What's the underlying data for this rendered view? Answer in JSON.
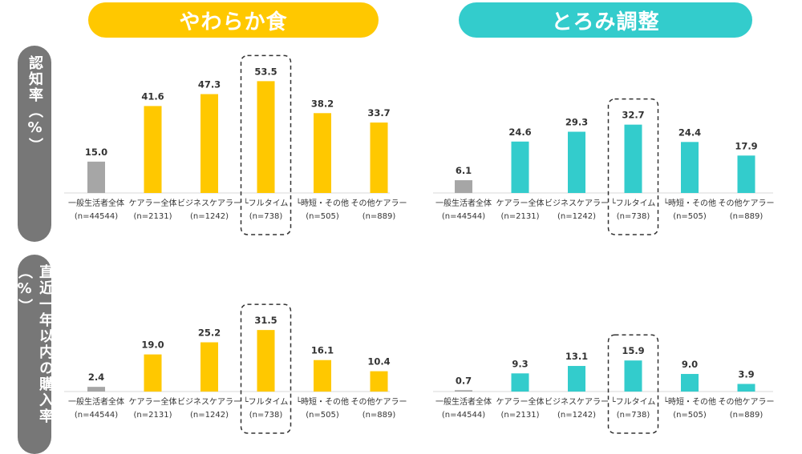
{
  "headers": {
    "left": "やわらか食",
    "right": "とろみ調整"
  },
  "row_labels": {
    "top": "認知率（%）",
    "bottom": "直近一年以内の購入率（%）"
  },
  "colors": {
    "yellow": "#FFC800",
    "teal": "#33CCCC",
    "gray": "#A6A6A6",
    "axis": "#D9D9D9",
    "highlight_border": "#333333"
  },
  "categories": [
    {
      "name": "一般生活者全体",
      "n": "(n=44544)"
    },
    {
      "name": "ケアラー全体",
      "n": "(n=2131)"
    },
    {
      "name": "ビジネスケアラー",
      "n": "(n=1242)"
    },
    {
      "name": "└フルタイム",
      "n": "(n=738)"
    },
    {
      "name": "└時短・その他",
      "n": "(n=505)"
    },
    {
      "name": "その他ケアラー",
      "n": "(n=889)"
    }
  ],
  "chart_data": [
    {
      "type": "bar",
      "panel": "やわらか食 / 認知率",
      "values": [
        15.0,
        41.6,
        47.3,
        53.5,
        38.2,
        33.7
      ],
      "ylim": [
        0,
        60
      ],
      "highlight_index": 3
    },
    {
      "type": "bar",
      "panel": "とろみ調整 / 認知率",
      "values": [
        6.1,
        24.6,
        29.3,
        32.7,
        24.4,
        17.9
      ],
      "ylim": [
        0,
        60
      ],
      "highlight_index": 3
    },
    {
      "type": "bar",
      "panel": "やわらか食 / 直近一年以内の購入率",
      "values": [
        2.4,
        19.0,
        25.2,
        31.5,
        16.1,
        10.4
      ],
      "ylim": [
        0,
        35
      ],
      "highlight_index": 3
    },
    {
      "type": "bar",
      "panel": "とろみ調整 / 直近一年以内の購入率",
      "values": [
        0.7,
        9.3,
        13.1,
        15.9,
        9.0,
        3.9
      ],
      "ylim": [
        0,
        35
      ],
      "highlight_index": 3
    }
  ]
}
